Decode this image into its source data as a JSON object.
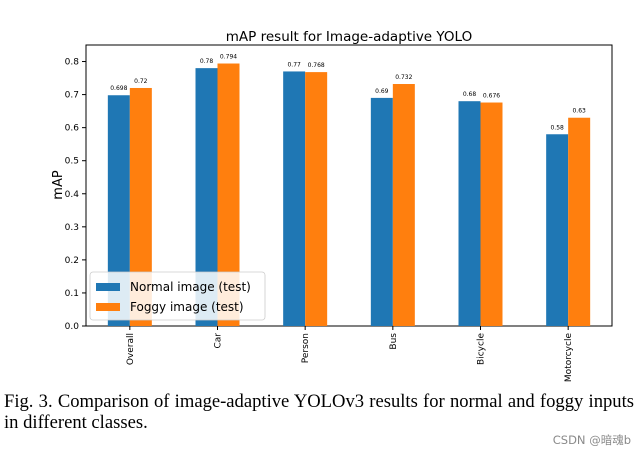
{
  "chart_data": {
    "type": "bar",
    "title": "mAP result for Image-adaptive YOLO",
    "xlabel": "",
    "ylabel": "mAP",
    "ylim": [
      0,
      0.85
    ],
    "yticks": [
      "0.0",
      "0.1",
      "0.2",
      "0.3",
      "0.4",
      "0.5",
      "0.6",
      "0.7",
      "0.8"
    ],
    "categories": [
      "Overall",
      "Car",
      "Person",
      "Bus",
      "Bicycle",
      "Motorcycle"
    ],
    "series": [
      {
        "name": "Normal image (test)",
        "color": "#1f77b4",
        "values": [
          0.698,
          0.78,
          0.77,
          0.69,
          0.68,
          0.58
        ],
        "labels": [
          "0.698",
          "0.78",
          "0.77",
          "0.69",
          "0.68",
          "0.58"
        ]
      },
      {
        "name": "Foggy image (test)",
        "color": "#ff7f0e",
        "values": [
          0.72,
          0.794,
          0.768,
          0.732,
          0.676,
          0.63
        ],
        "labels": [
          "0.72",
          "0.794",
          "0.768",
          "0.732",
          "0.676",
          "0.63"
        ]
      }
    ],
    "legend_position": "lower-left",
    "grid": false
  },
  "caption": "Fig. 3.  Comparison of image-adaptive YOLOv3 results for normal and foggy inputs in different classes.",
  "watermark": "CSDN @暗魂b"
}
